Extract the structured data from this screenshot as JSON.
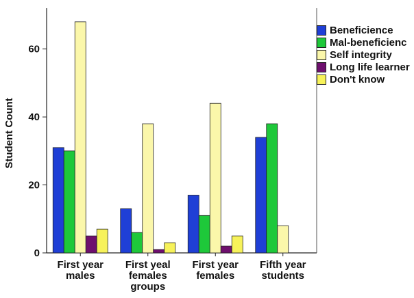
{
  "chart_data": {
    "type": "bar",
    "ylabel": "Student Count",
    "xlabel": "",
    "ylim": [
      0,
      72
    ],
    "yticks": [
      0,
      20,
      40,
      60
    ],
    "grid": false,
    "legend_position": "right",
    "categories": [
      "First year males",
      "First yeal females groups",
      "First year females",
      "Fifth year students"
    ],
    "series": [
      {
        "name": "Beneficience",
        "color": "#1f3fd6",
        "values": [
          31,
          13,
          17,
          34
        ]
      },
      {
        "name": "Mal-beneficienc",
        "color": "#1ec83a",
        "values": [
          30,
          6,
          11,
          38
        ]
      },
      {
        "name": "Self integrity",
        "color": "#fbf7aa",
        "values": [
          68,
          38,
          44,
          8
        ]
      },
      {
        "name": "Long life learner",
        "color": "#6e0f6e",
        "values": [
          5,
          1,
          2,
          0
        ]
      },
      {
        "name": "Don't know",
        "color": "#f7f25a",
        "values": [
          7,
          3,
          5,
          0
        ]
      }
    ]
  }
}
